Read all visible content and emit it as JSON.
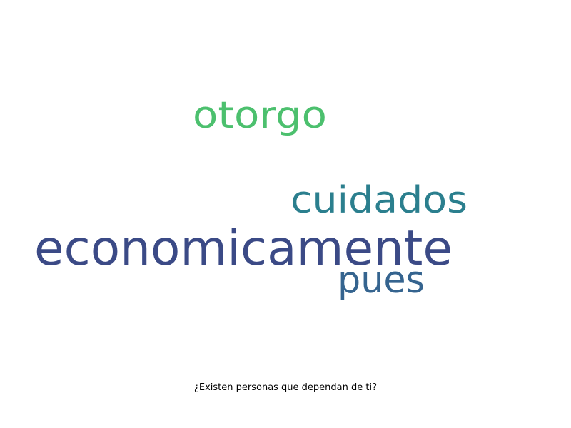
{
  "chart_data": {
    "type": "wordcloud",
    "title": "¿Existen personas que dependan de ti?",
    "words": [
      {
        "text": "economicamente",
        "weight": 1.0,
        "color": "#3b4a86"
      },
      {
        "text": "otorgo",
        "weight": 0.62,
        "color": "#4cc06e"
      },
      {
        "text": "cuidados",
        "weight": 0.62,
        "color": "#2b7f8e"
      },
      {
        "text": "pues",
        "weight": 0.62,
        "color": "#35648f"
      }
    ]
  }
}
